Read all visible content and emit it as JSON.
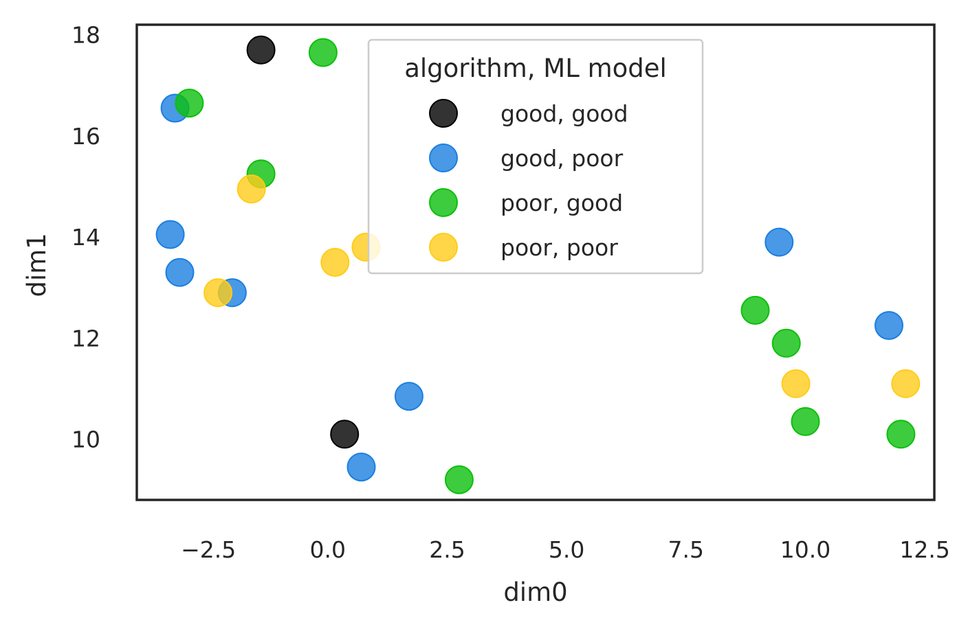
{
  "chart_data": {
    "type": "scatter",
    "title": "",
    "xlabel": "dim0",
    "ylabel": "dim1",
    "xlim": [
      -4.0,
      12.7
    ],
    "ylim": [
      8.8,
      18.2
    ],
    "xticks": [
      "−2.5",
      "0.0",
      "2.5",
      "5.0",
      "7.5",
      "10.0",
      "12.5"
    ],
    "xtick_values": [
      -2.5,
      0.0,
      2.5,
      5.0,
      7.5,
      10.0,
      12.5
    ],
    "yticks": [
      "10",
      "12",
      "14",
      "16",
      "18"
    ],
    "ytick_values": [
      10,
      12,
      14,
      16,
      18
    ],
    "grid": false,
    "legend": {
      "title": "algorithm, ML model",
      "placement": "upper-center"
    },
    "series": [
      {
        "name": "good, good",
        "color": "#000000",
        "points": [
          [
            -1.4,
            17.7
          ],
          [
            0.35,
            10.1
          ]
        ]
      },
      {
        "name": "good, poor",
        "color": "#1b7fe0",
        "points": [
          [
            -3.2,
            16.55
          ],
          [
            -3.3,
            14.05
          ],
          [
            -3.1,
            13.3
          ],
          [
            -2.0,
            12.9
          ],
          [
            1.7,
            10.85
          ],
          [
            0.7,
            9.45
          ],
          [
            9.45,
            13.9
          ],
          [
            11.75,
            12.25
          ]
        ]
      },
      {
        "name": "poor, good",
        "color": "#0dbf0d",
        "points": [
          [
            -0.1,
            17.65
          ],
          [
            -2.9,
            16.65
          ],
          [
            -1.4,
            15.25
          ],
          [
            8.95,
            12.55
          ],
          [
            9.6,
            11.9
          ],
          [
            10.0,
            10.35
          ],
          [
            12.0,
            10.1
          ],
          [
            2.75,
            9.2
          ]
        ]
      },
      {
        "name": "poor, poor",
        "color": "#ffcc1a",
        "points": [
          [
            -1.6,
            14.95
          ],
          [
            0.8,
            13.8
          ],
          [
            0.15,
            13.5
          ],
          [
            -2.3,
            12.9
          ],
          [
            9.8,
            11.1
          ],
          [
            12.1,
            11.1
          ]
        ]
      }
    ]
  }
}
